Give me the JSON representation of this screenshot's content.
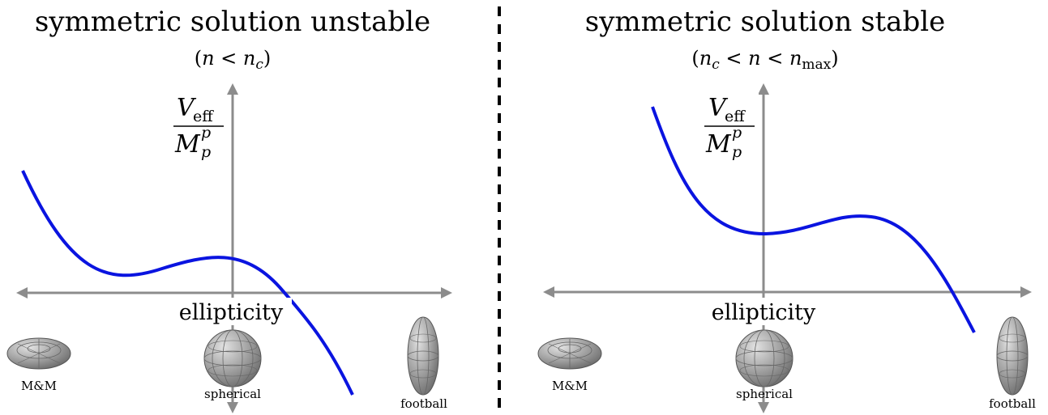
{
  "panels": [
    {
      "title": "symmetric solution unstable",
      "condition": {
        "open": "(",
        "n": "n",
        "lt1": " < ",
        "nc": "n",
        "nc_sub": "c",
        "close": ")"
      },
      "ylabel": {
        "num": "V",
        "num_sub": "eff",
        "den": "M",
        "den_sub": "p",
        "den_sup": "p"
      },
      "xlabel": "ellipticity",
      "shapes": [
        "M&M",
        "spherical",
        "football"
      ]
    },
    {
      "title": "symmetric solution stable",
      "condition": {
        "open": "(",
        "nc": "n",
        "nc_sub": "c",
        "lt1": " < ",
        "n": "n",
        "lt2": " < ",
        "nmax": "n",
        "nmax_sub": "max",
        "close": ")"
      },
      "ylabel": {
        "num": "V",
        "num_sub": "eff",
        "den": "M",
        "den_sub": "p",
        "den_sup": "p"
      },
      "xlabel": "ellipticity",
      "shapes": [
        "M&M",
        "spherical",
        "football"
      ]
    }
  ],
  "colors": {
    "curve": "#0a14e0",
    "axis": "#8c8c8c",
    "divider": "#000000",
    "shape_fill": "#9a9a9a"
  }
}
